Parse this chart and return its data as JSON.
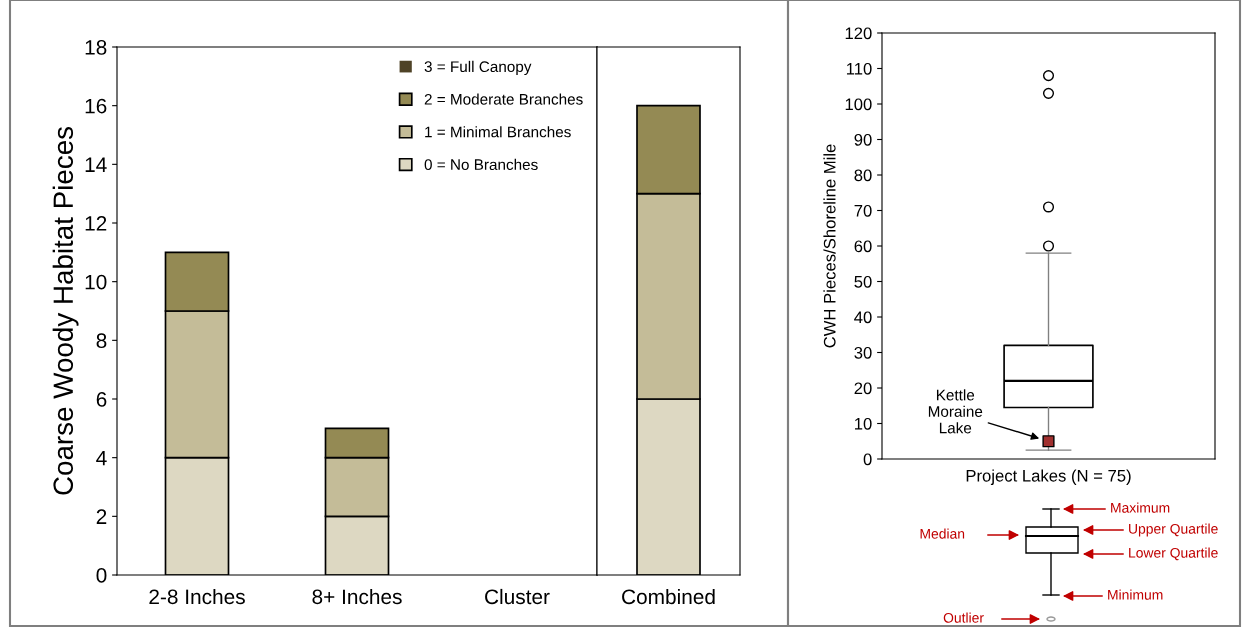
{
  "chart_data": [
    {
      "type": "bar",
      "stacked": true,
      "ylabel": "Coarse Woody Habitat Pieces",
      "categories": [
        "2-8 Inches",
        "8+ Inches",
        "Cluster"
      ],
      "series": [
        {
          "name": "0 = No Branches",
          "color": "#ddd8c2",
          "values": [
            4,
            2,
            0
          ]
        },
        {
          "name": "1 = Minimal Branches",
          "color": "#c4bc98",
          "values": [
            5,
            2,
            0
          ]
        },
        {
          "name": "2 = Moderate Branches",
          "color": "#948a54",
          "values": [
            2,
            1,
            0
          ]
        },
        {
          "name": "3 = Full Canopy",
          "color": "#4f4327",
          "values": [
            0,
            0,
            0
          ]
        }
      ],
      "ylim": [
        0,
        18
      ],
      "yticks": [
        0,
        2,
        4,
        6,
        8,
        10,
        12,
        14,
        16,
        18
      ],
      "legend": "top right",
      "grid": false
    },
    {
      "type": "bar",
      "stacked": true,
      "categories": [
        "Combined"
      ],
      "series": [
        {
          "color": "#ddd8c2",
          "values": [
            6
          ]
        },
        {
          "color": "#c4bc98",
          "values": [
            7
          ]
        },
        {
          "color": "#948a54",
          "values": [
            3
          ]
        },
        {
          "color": "#4f4327",
          "values": [
            0
          ]
        }
      ],
      "ylim": [
        0,
        18
      ],
      "tick_labels": "x",
      "grid": false
    },
    {
      "type": "box",
      "xlabel": "Project Lakes (N = 75)",
      "ylabel": "CWH Pieces/Shoreline Mile",
      "categories": [
        null
      ],
      "boxes": [
        {
          "low": 2.5,
          "q1": 14.5,
          "median": 22,
          "q3": 32,
          "high": 58,
          "outliers": [
            60,
            71,
            103,
            108
          ]
        }
      ],
      "series": [
        {
          "type": "scatter",
          "marker": "square",
          "color": "#a0302f",
          "values": [
            5
          ]
        }
      ],
      "ylim": [
        0,
        120
      ],
      "yticks": [
        0,
        10,
        20,
        30,
        40,
        50,
        60,
        70,
        80,
        90,
        100,
        110,
        120
      ],
      "grid": false,
      "annotations": [
        "Kettle\nMoraine\nLake",
        "Maximum",
        "Upper Quartile",
        "Median",
        "Lower Quartile",
        "Minimum",
        "Outlier"
      ]
    }
  ]
}
